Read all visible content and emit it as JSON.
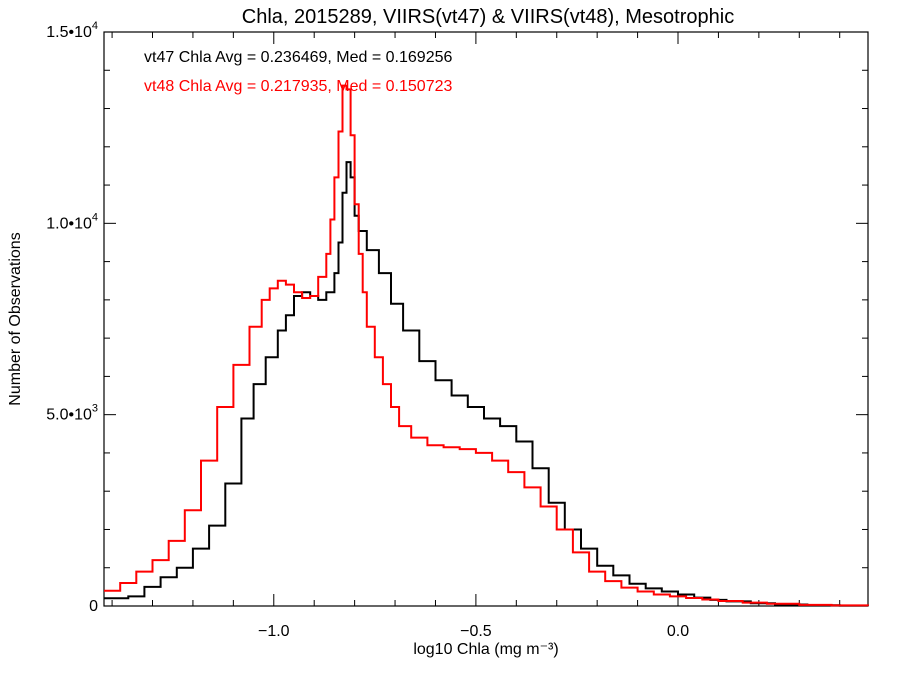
{
  "chart_data": {
    "type": "line",
    "title": "Chla, 2015289, VIIRS(vt47) & VIIRS(vt48), Mesotrophic",
    "xlabel": "log10 Chla (mg m⁻³)",
    "ylabel": "Number of Observations",
    "xlim": [
      -1.42,
      0.47
    ],
    "ylim": [
      0,
      15000
    ],
    "x_ticks": [
      -1.0,
      -0.5,
      0.0
    ],
    "x_tick_labels": [
      "−1.0",
      "−0.5",
      "0.0"
    ],
    "y_ticks": [
      0,
      5000,
      10000,
      15000
    ],
    "y_tick_labels": [
      {
        "mantissa": "0",
        "exponent": ""
      },
      {
        "mantissa": "5.0•10",
        "exponent": "3"
      },
      {
        "mantissa": "1.0•10",
        "exponent": "4"
      },
      {
        "mantissa": "1.5•10",
        "exponent": "4"
      }
    ],
    "grid": false,
    "annotations": [
      {
        "text": "vt47 Chla Avg = 0.236469, Med = 0.169256",
        "color": "#000000"
      },
      {
        "text": "vt48 Chla Avg = 0.217935, Med = 0.150723",
        "color": "#ff0000"
      }
    ],
    "series": [
      {
        "color": "#000000",
        "points": [
          [
            -1.42,
            200
          ],
          [
            -1.36,
            250
          ],
          [
            -1.32,
            500
          ],
          [
            -1.28,
            750
          ],
          [
            -1.24,
            1000
          ],
          [
            -1.2,
            1500
          ],
          [
            -1.16,
            2100
          ],
          [
            -1.12,
            3200
          ],
          [
            -1.08,
            4900
          ],
          [
            -1.05,
            5800
          ],
          [
            -1.02,
            6500
          ],
          [
            -0.99,
            7200
          ],
          [
            -0.97,
            7600
          ],
          [
            -0.95,
            8100
          ],
          [
            -0.93,
            8200
          ],
          [
            -0.91,
            8100
          ],
          [
            -0.89,
            8000
          ],
          [
            -0.87,
            8200
          ],
          [
            -0.85,
            8700
          ],
          [
            -0.84,
            9500
          ],
          [
            -0.83,
            10800
          ],
          [
            -0.82,
            11600
          ],
          [
            -0.81,
            11200
          ],
          [
            -0.8,
            10200
          ],
          [
            -0.79,
            9800
          ],
          [
            -0.77,
            9300
          ],
          [
            -0.74,
            8700
          ],
          [
            -0.71,
            7900
          ],
          [
            -0.68,
            7200
          ],
          [
            -0.64,
            6400
          ],
          [
            -0.6,
            5900
          ],
          [
            -0.56,
            5500
          ],
          [
            -0.52,
            5200
          ],
          [
            -0.48,
            4900
          ],
          [
            -0.44,
            4700
          ],
          [
            -0.4,
            4300
          ],
          [
            -0.36,
            3600
          ],
          [
            -0.32,
            2700
          ],
          [
            -0.28,
            2000
          ],
          [
            -0.24,
            1500
          ],
          [
            -0.2,
            1050
          ],
          [
            -0.16,
            800
          ],
          [
            -0.12,
            580
          ],
          [
            -0.08,
            460
          ],
          [
            -0.04,
            380
          ],
          [
            0.0,
            300
          ],
          [
            0.04,
            220
          ],
          [
            0.08,
            160
          ],
          [
            0.12,
            120
          ],
          [
            0.18,
            70
          ],
          [
            0.24,
            40
          ],
          [
            0.32,
            20
          ],
          [
            0.4,
            10
          ],
          [
            0.47,
            5
          ]
        ]
      },
      {
        "color": "#ff0000",
        "points": [
          [
            -1.42,
            400
          ],
          [
            -1.38,
            600
          ],
          [
            -1.34,
            900
          ],
          [
            -1.3,
            1200
          ],
          [
            -1.26,
            1700
          ],
          [
            -1.22,
            2500
          ],
          [
            -1.18,
            3800
          ],
          [
            -1.14,
            5200
          ],
          [
            -1.1,
            6300
          ],
          [
            -1.06,
            7300
          ],
          [
            -1.03,
            8000
          ],
          [
            -1.01,
            8300
          ],
          [
            -0.99,
            8500
          ],
          [
            -0.97,
            8400
          ],
          [
            -0.95,
            8200
          ],
          [
            -0.93,
            8050
          ],
          [
            -0.91,
            8100
          ],
          [
            -0.89,
            8600
          ],
          [
            -0.87,
            9200
          ],
          [
            -0.86,
            10100
          ],
          [
            -0.85,
            11200
          ],
          [
            -0.84,
            12400
          ],
          [
            -0.83,
            13600
          ],
          [
            -0.82,
            13500
          ],
          [
            -0.81,
            12300
          ],
          [
            -0.8,
            10500
          ],
          [
            -0.79,
            9200
          ],
          [
            -0.78,
            8200
          ],
          [
            -0.77,
            7300
          ],
          [
            -0.75,
            6500
          ],
          [
            -0.73,
            5800
          ],
          [
            -0.71,
            5200
          ],
          [
            -0.69,
            4700
          ],
          [
            -0.66,
            4400
          ],
          [
            -0.62,
            4200
          ],
          [
            -0.58,
            4150
          ],
          [
            -0.54,
            4100
          ],
          [
            -0.5,
            4000
          ],
          [
            -0.46,
            3800
          ],
          [
            -0.42,
            3500
          ],
          [
            -0.38,
            3100
          ],
          [
            -0.34,
            2600
          ],
          [
            -0.3,
            2000
          ],
          [
            -0.26,
            1400
          ],
          [
            -0.22,
            900
          ],
          [
            -0.18,
            650
          ],
          [
            -0.14,
            480
          ],
          [
            -0.1,
            380
          ],
          [
            -0.06,
            300
          ],
          [
            -0.02,
            250
          ],
          [
            0.02,
            210
          ],
          [
            0.06,
            170
          ],
          [
            0.1,
            130
          ],
          [
            0.16,
            90
          ],
          [
            0.22,
            60
          ],
          [
            0.3,
            30
          ],
          [
            0.38,
            15
          ],
          [
            0.47,
            5
          ]
        ]
      }
    ]
  }
}
